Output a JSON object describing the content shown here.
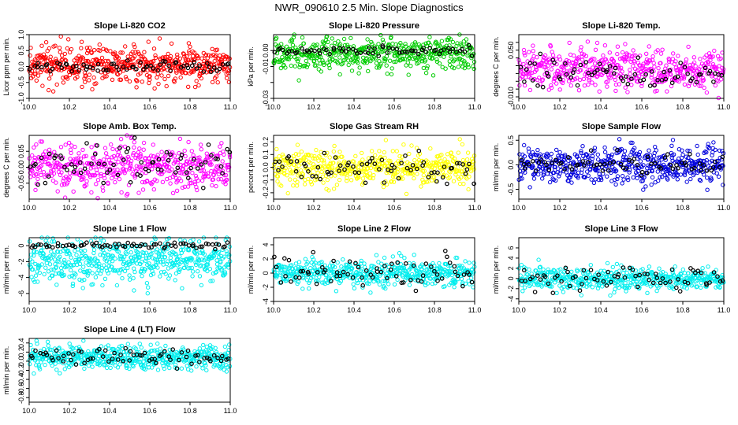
{
  "figure": {
    "title": "NWR_090610  2.5 Min. Slope Diagnostics",
    "highlight_color": "#000000"
  },
  "chart_data": [
    {
      "id": "co2",
      "type": "scatter",
      "title": "Slope Li-820 CO2",
      "ylabel": "Licor ppm per min.",
      "color": "#ff0000",
      "xlim": [
        10.0,
        11.0
      ],
      "ylim": [
        -1.0,
        1.0
      ],
      "yticks": [
        -1.0,
        -0.5,
        0.0,
        0.5,
        1.0
      ],
      "ytick_labels": [
        "-1.0",
        "-0.5",
        "0.0",
        "0.5",
        "1.0"
      ],
      "xticks": [
        10.0,
        10.2,
        10.4,
        10.6,
        10.8,
        11.0
      ],
      "xtick_labels": [
        "10.0",
        "10.2",
        "10.4",
        "10.6",
        "10.8",
        "11.0"
      ],
      "n_points": 520,
      "center": 0.05,
      "spread": 0.3,
      "range": [
        -0.9,
        1.0
      ],
      "trend": 0,
      "highlight_center": 0.0,
      "highlight_spread": 0.1
    },
    {
      "id": "pressure",
      "type": "scatter",
      "title": "Slope Li-820 Pressure",
      "ylabel": "kPa per min.",
      "color": "#00cc00",
      "xlim": [
        10.0,
        11.0
      ],
      "ylim": [
        -0.03,
        0.01
      ],
      "yticks": [
        -0.03,
        -0.02,
        -0.01,
        0.0
      ],
      "ytick_labels": [
        "-0.03",
        "",
        "-0.01",
        "0.00"
      ],
      "xticks": [
        10.0,
        10.2,
        10.4,
        10.6,
        10.8,
        11.0
      ],
      "xtick_labels": [
        "10.0",
        "10.2",
        "10.4",
        "10.6",
        "10.8",
        "11.0"
      ],
      "n_points": 480,
      "center": -0.002,
      "spread": 0.005,
      "range": [
        -0.029,
        0.01
      ],
      "trend": 0,
      "highlight_center": 0.0,
      "highlight_spread": 0.0015
    },
    {
      "id": "temp",
      "type": "scatter",
      "title": "Slope Li-820 Temp.",
      "ylabel": "degrees C per min.",
      "color": "#ff00ff",
      "xlim": [
        10.0,
        11.0
      ],
      "ylim": [
        -0.012,
        0.07
      ],
      "yticks": [
        -0.01,
        0.0,
        0.01,
        0.02,
        0.03,
        0.04,
        0.05,
        0.06
      ],
      "ytick_labels": [
        "-0.010",
        "",
        "",
        "",
        "",
        "",
        "0.050",
        ""
      ],
      "xticks": [
        10.0,
        10.2,
        10.4,
        10.6,
        10.8,
        11.0
      ],
      "xtick_labels": [
        "10.0",
        "10.2",
        "10.4",
        "10.6",
        "10.8",
        "11.0"
      ],
      "n_points": 500,
      "center": 0.025,
      "spread": 0.013,
      "range": [
        -0.012,
        0.07
      ],
      "trend": 0,
      "highlight_center": 0.02,
      "highlight_spread": 0.01
    },
    {
      "id": "boxtemp",
      "type": "scatter",
      "title": "Slope Amb. Box Temp.",
      "ylabel": "degrees C per min.",
      "color": "#ff00ff",
      "xlim": [
        10.0,
        11.0
      ],
      "ylim": [
        -0.1,
        0.1
      ],
      "yticks": [
        -0.05,
        0.0,
        0.05
      ],
      "ytick_labels": [
        "-0.05",
        "0.00",
        "0.05"
      ],
      "xticks": [
        10.0,
        10.2,
        10.4,
        10.6,
        10.8,
        11.0
      ],
      "xtick_labels": [
        "10.0",
        "10.2",
        "10.4",
        "10.6",
        "10.8",
        "11.0"
      ],
      "n_points": 500,
      "center": 0.0,
      "spread": 0.035,
      "range": [
        -0.1,
        0.1
      ],
      "trend": 0,
      "highlight_center": 0.01,
      "highlight_spread": 0.03
    },
    {
      "id": "rh",
      "type": "scatter",
      "title": "Slope Gas Stream RH",
      "ylabel": "percent per min.",
      "color": "#ffff00",
      "xlim": [
        10.0,
        11.0
      ],
      "ylim": [
        -0.25,
        0.25
      ],
      "yticks": [
        -0.2,
        -0.1,
        0.0,
        0.1,
        0.2
      ],
      "ytick_labels": [
        "-0.2",
        "-0.1",
        "0.0",
        "0.1",
        "0.2"
      ],
      "xticks": [
        10.0,
        10.2,
        10.4,
        10.6,
        10.8,
        11.0
      ],
      "xtick_labels": [
        "10.0",
        "10.2",
        "10.4",
        "10.6",
        "10.8",
        "11.0"
      ],
      "n_points": 480,
      "center": 0.0,
      "spread": 0.07,
      "range": [
        -0.25,
        0.25
      ],
      "trend": 0,
      "highlight_center": 0.0,
      "highlight_spread": 0.06
    },
    {
      "id": "sampleflow",
      "type": "scatter",
      "title": "Slope Sample Flow",
      "ylabel": "ml/min per min.",
      "color": "#0000dd",
      "xlim": [
        10.0,
        11.0
      ],
      "ylim": [
        -0.7,
        0.6
      ],
      "yticks": [
        -0.5,
        0.0,
        0.5
      ],
      "ytick_labels": [
        "-0.5",
        "0.0",
        "0.5"
      ],
      "xticks": [
        10.0,
        10.2,
        10.4,
        10.6,
        10.8,
        11.0
      ],
      "xtick_labels": [
        "10.0",
        "10.2",
        "10.4",
        "10.6",
        "10.8",
        "11.0"
      ],
      "n_points": 520,
      "center": 0.0,
      "spread": 0.18,
      "range": [
        -0.7,
        0.6
      ],
      "trend": 0,
      "highlight_center": 0.0,
      "highlight_spread": 0.12
    },
    {
      "id": "line1",
      "type": "scatter",
      "title": "Slope Line 1 Flow",
      "ylabel": "ml/min per min.",
      "color": "#00eeee",
      "xlim": [
        10.0,
        11.0
      ],
      "ylim": [
        -7.0,
        1.0
      ],
      "yticks": [
        -6,
        -4,
        -2,
        0
      ],
      "ytick_labels": [
        "-6",
        "-4",
        "-2",
        "0"
      ],
      "xticks": [
        10.0,
        10.2,
        10.4,
        10.6,
        10.8,
        11.0
      ],
      "xtick_labels": [
        "10.0",
        "10.2",
        "10.4",
        "10.6",
        "10.8",
        "11.0"
      ],
      "n_points": 520,
      "center": -1.8,
      "spread": 1.4,
      "range": [
        -7.0,
        1.0
      ],
      "trend": 0,
      "highlight_center": 0.0,
      "highlight_spread": 0.2
    },
    {
      "id": "line2",
      "type": "scatter",
      "title": "Slope Line 2 Flow",
      "ylabel": "ml/min per min.",
      "color": "#00eeee",
      "xlim": [
        10.0,
        11.0
      ],
      "ylim": [
        -4.0,
        5.0
      ],
      "yticks": [
        -4,
        -2,
        0,
        2,
        4
      ],
      "ytick_labels": [
        "-4",
        "-2",
        "0",
        "2",
        "4"
      ],
      "xticks": [
        10.0,
        10.2,
        10.4,
        10.6,
        10.8,
        11.0
      ],
      "xtick_labels": [
        "10.0",
        "10.2",
        "10.4",
        "10.6",
        "10.8",
        "11.0"
      ],
      "n_points": 500,
      "center": 0.0,
      "spread": 0.9,
      "range": [
        -3.8,
        4.8
      ],
      "trend": 0,
      "highlight_center": 0.0,
      "highlight_spread": 1.2
    },
    {
      "id": "line3",
      "type": "scatter",
      "title": "Slope Line 3 Flow",
      "ylabel": "ml/min per min.",
      "color": "#00eeee",
      "xlim": [
        10.0,
        11.0
      ],
      "ylim": [
        -4.5,
        8.0
      ],
      "yticks": [
        -4,
        -2,
        0,
        2,
        4,
        6
      ],
      "ytick_labels": [
        "-4",
        "-2",
        "0",
        "2",
        "4",
        "6"
      ],
      "xticks": [
        10.0,
        10.2,
        10.4,
        10.6,
        10.8,
        11.0
      ],
      "xtick_labels": [
        "10.0",
        "10.2",
        "10.4",
        "10.6",
        "10.8",
        "11.0"
      ],
      "n_points": 500,
      "center": 0.0,
      "spread": 1.1,
      "range": [
        -4.2,
        7.5
      ],
      "trend": 0,
      "highlight_center": 0.0,
      "highlight_spread": 1.2
    },
    {
      "id": "line4",
      "type": "scatter",
      "title": "Slope Line 4 (LT) Flow",
      "ylabel": "ml/min per min.",
      "color": "#00eeee",
      "xlim": [
        10.0,
        11.0
      ],
      "ylim": [
        -0.9,
        0.5
      ],
      "yticks": [
        -0.8,
        -0.6,
        -0.4,
        -0.2,
        0.0,
        0.2,
        0.4
      ],
      "ytick_labels": [
        "-0.8",
        "-0.6",
        "-0.4",
        "-0.2",
        "0.0",
        "0.2",
        "0.4"
      ],
      "xticks": [
        10.0,
        10.2,
        10.4,
        10.6,
        10.8,
        11.0
      ],
      "xtick_labels": [
        "10.0",
        "10.2",
        "10.4",
        "10.6",
        "10.8",
        "11.0"
      ],
      "n_points": 520,
      "center": 0.08,
      "spread": 0.12,
      "range": [
        -0.85,
        0.45
      ],
      "trend": 0,
      "highlight_center": 0.08,
      "highlight_spread": 0.08
    }
  ]
}
